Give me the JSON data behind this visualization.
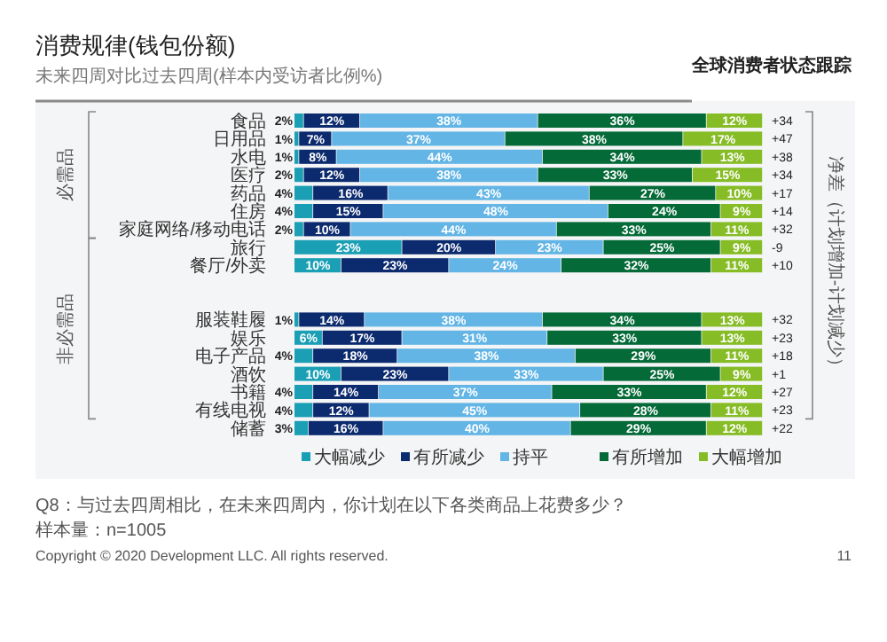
{
  "chart_data": {
    "type": "bar",
    "orientation": "horizontal",
    "stacked": true,
    "legend": "bottom",
    "title": "消费规律(钱包份额)",
    "subtitle": "未来四周对比过去四周(样本内受访者比例%)",
    "categories": [
      "食品",
      "日用品",
      "水电",
      "医疗",
      "药品",
      "住房",
      "家庭网络/移动电话",
      "旅行",
      "餐厅/外卖",
      null,
      null,
      "服装鞋履",
      "娱乐",
      "电子产品",
      "酒饮",
      "书籍",
      "有线电视",
      "储蓄"
    ],
    "series": [
      {
        "name": "大幅减少",
        "color": "#1a9fb5",
        "values": [
          2,
          1,
          1,
          2,
          4,
          4,
          2,
          23,
          10,
          null,
          null,
          1,
          6,
          4,
          10,
          4,
          4,
          3
        ],
        "value_labels": [
          "2%",
          "1%",
          "1%",
          "2%",
          "4%",
          "4%",
          "2%",
          "23%",
          "10%",
          null,
          null,
          "1%",
          "6%",
          "4%",
          "10%",
          "4%",
          "4%",
          "3%"
        ]
      },
      {
        "name": "有所减少",
        "color": "#0c2a6e",
        "values": [
          12,
          7,
          8,
          12,
          16,
          15,
          10,
          20,
          23,
          null,
          null,
          14,
          17,
          18,
          23,
          14,
          12,
          16
        ],
        "value_labels": [
          "12%",
          "7%",
          "8%",
          "12%",
          "16%",
          "15%",
          "10%",
          "20%",
          "23%",
          null,
          null,
          "14%",
          "17%",
          "18%",
          "23%",
          "14%",
          "12%",
          "16%"
        ]
      },
      {
        "name": "持平",
        "color": "#62b5e5",
        "values": [
          38,
          37,
          44,
          38,
          43,
          48,
          44,
          23,
          24,
          null,
          null,
          38,
          31,
          38,
          33,
          37,
          45,
          40
        ],
        "value_labels": [
          "38%",
          "37%",
          "44%",
          "38%",
          "43%",
          "48%",
          "44%",
          "23%",
          "24%",
          null,
          null,
          "38%",
          "31%",
          "38%",
          "33%",
          "37%",
          "45%",
          "40%"
        ]
      },
      {
        "name": "有所增加",
        "color": "#046a38",
        "values": [
          36,
          38,
          34,
          33,
          27,
          24,
          33,
          25,
          32,
          null,
          null,
          34,
          33,
          29,
          25,
          33,
          28,
          29
        ],
        "value_labels": [
          "36%",
          "38%",
          "34%",
          "33%",
          "27%",
          "24%",
          "33%",
          "25%",
          "32%",
          null,
          null,
          "34%",
          "33%",
          "29%",
          "25%",
          "33%",
          "28%",
          "29%"
        ]
      },
      {
        "name": "大幅增加",
        "color": "#86bc25",
        "values": [
          12,
          17,
          13,
          15,
          10,
          9,
          11,
          9,
          11,
          null,
          null,
          13,
          13,
          11,
          9,
          12,
          11,
          12
        ],
        "value_labels": [
          "12%",
          "17%",
          "13%",
          "15%",
          "10%",
          "9%",
          "11%",
          "9%",
          "11%",
          null,
          null,
          "13%",
          "13%",
          "11%",
          "9%",
          "12%",
          "11%",
          "12%"
        ]
      }
    ],
    "annotations": [
      "+34",
      "+47",
      "+38",
      "+34",
      "+17",
      "+14",
      "+32",
      "-9",
      "+10",
      "+32",
      "+23",
      "+18",
      "+1",
      "+27",
      "+23",
      "+22",
      "必需品",
      "非必需品",
      "净差（计划增加-计划减少）",
      "全球消费者状态跟踪",
      "Q8：与过去四周相比，在未来四周内，你计划在以下各类商品上花费多少？",
      "样本量：n=1005",
      "Copyright © 2020 Development LLC. All rights reserved.",
      "11"
    ]
  }
}
